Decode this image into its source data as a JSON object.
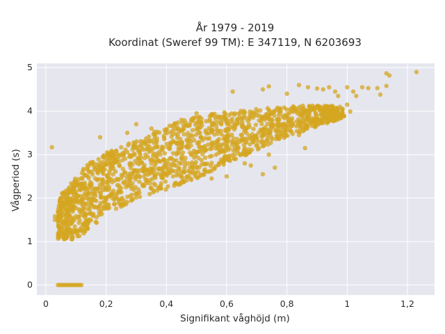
{
  "chart_data": {
    "type": "scatter",
    "title_line1": "År 1979 - 2019",
    "title_line2": "Koordinat (Sweref 99 TM): E 347119, N 6203693",
    "xlabel": "Signifikant våghöjd (m)",
    "ylabel": "Vågperiod (s)",
    "xlim": [
      -0.03,
      1.29
    ],
    "ylim": [
      -0.23,
      5.1
    ],
    "x_ticks": [
      0,
      0.2,
      0.4,
      0.6,
      0.8,
      1,
      1.2
    ],
    "x_tick_labels": [
      "0",
      "0,2",
      "0,4",
      "0,6",
      "0,8",
      "1",
      "1,2"
    ],
    "y_ticks": [
      0,
      1,
      2,
      3,
      4,
      5
    ],
    "y_tick_labels": [
      "0",
      "1",
      "2",
      "3",
      "4",
      "5"
    ],
    "grid": true,
    "marker_color": "#d4a520",
    "plot_background": "#e6e6ef",
    "cloud": {
      "x_range": [
        0.04,
        0.99
      ],
      "lower_bound": [
        [
          0.04,
          1.05
        ],
        [
          0.1,
          1.05
        ],
        [
          0.15,
          1.3
        ],
        [
          0.2,
          1.65
        ],
        [
          0.3,
          1.95
        ],
        [
          0.4,
          2.2
        ],
        [
          0.5,
          2.45
        ],
        [
          0.6,
          2.8
        ],
        [
          0.7,
          3.1
        ],
        [
          0.8,
          3.4
        ],
        [
          0.9,
          3.65
        ],
        [
          0.99,
          3.85
        ]
      ],
      "upper_bound": [
        [
          0.04,
          2.0
        ],
        [
          0.1,
          2.5
        ],
        [
          0.15,
          2.85
        ],
        [
          0.2,
          3.05
        ],
        [
          0.3,
          3.35
        ],
        [
          0.4,
          3.65
        ],
        [
          0.5,
          3.9
        ],
        [
          0.6,
          3.98
        ],
        [
          0.7,
          4.05
        ],
        [
          0.8,
          4.1
        ],
        [
          0.9,
          4.15
        ],
        [
          0.99,
          4.1
        ]
      ]
    },
    "zero_period_points": {
      "x_from": 0.04,
      "x_to": 0.12,
      "y": 0
    },
    "outliers": [
      [
        0.02,
        3.17
      ],
      [
        0.03,
        1.58
      ],
      [
        0.03,
        1.5
      ],
      [
        0.05,
        1.7
      ],
      [
        0.06,
        1.15
      ],
      [
        0.43,
        2.75
      ],
      [
        0.44,
        2.55
      ],
      [
        0.46,
        2.6
      ],
      [
        0.55,
        2.45
      ],
      [
        0.63,
        2.9
      ],
      [
        0.66,
        2.8
      ],
      [
        0.72,
        2.55
      ],
      [
        0.76,
        2.7
      ],
      [
        0.86,
        3.15
      ],
      [
        0.62,
        4.45
      ],
      [
        0.72,
        4.5
      ],
      [
        0.74,
        4.57
      ],
      [
        0.8,
        4.4
      ],
      [
        0.84,
        4.6
      ],
      [
        0.87,
        4.55
      ],
      [
        0.9,
        4.52
      ],
      [
        0.92,
        4.5
      ],
      [
        0.94,
        4.55
      ],
      [
        0.96,
        4.45
      ],
      [
        0.97,
        4.35
      ],
      [
        1.0,
        4.55
      ],
      [
        1.02,
        4.45
      ],
      [
        1.05,
        4.55
      ],
      [
        1.07,
        4.53
      ],
      [
        1.1,
        4.53
      ],
      [
        1.11,
        4.38
      ],
      [
        1.13,
        4.58
      ],
      [
        1.13,
        4.87
      ],
      [
        1.14,
        4.82
      ],
      [
        1.23,
        4.9
      ],
      [
        1.0,
        4.15
      ],
      [
        1.01,
        3.99
      ],
      [
        1.03,
        4.35
      ],
      [
        0.95,
        3.8
      ],
      [
        0.98,
        3.85
      ],
      [
        0.9,
        3.9
      ],
      [
        0.93,
        3.75
      ],
      [
        0.81,
        3.55
      ],
      [
        0.84,
        3.45
      ],
      [
        0.35,
        3.6
      ],
      [
        0.45,
        3.8
      ],
      [
        0.5,
        3.95
      ],
      [
        0.27,
        3.5
      ],
      [
        0.3,
        3.7
      ],
      [
        0.18,
        3.4
      ],
      [
        0.6,
        2.5
      ],
      [
        0.68,
        2.75
      ],
      [
        0.74,
        3.0
      ]
    ]
  }
}
